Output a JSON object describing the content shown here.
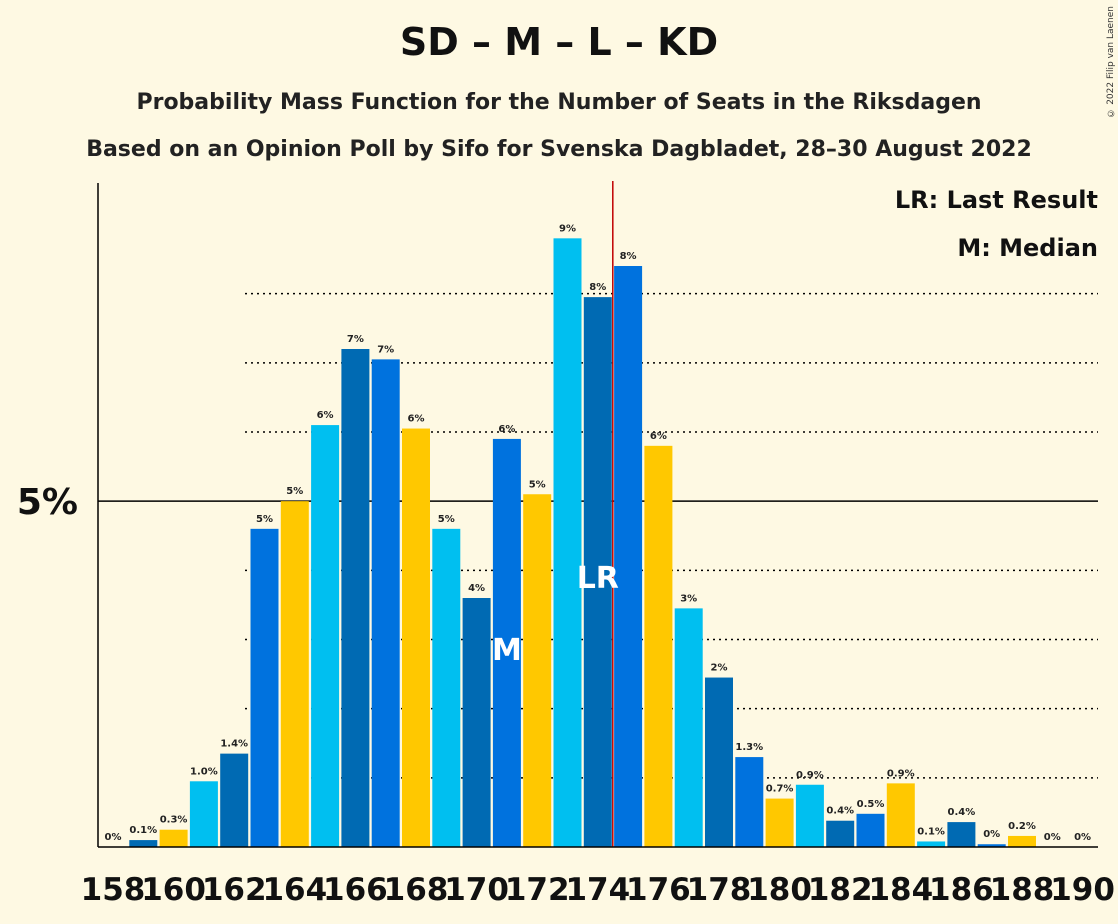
{
  "title": "SD – M – L – KD",
  "subtitle1": "Probability Mass Function for the Number of Seats in the Riksdagen",
  "subtitle2": "Based on an Opinion Poll by Sifo for Svenska Dagbladet, 28–30 August 2022",
  "copyright": "© 2022 Filip van Laenen",
  "legend": {
    "lr": "LR: Last Result",
    "m": "M: Median"
  },
  "ytick_label": "5%",
  "colors": {
    "background": "#FEF9E3",
    "lightblue": "#00BFF0",
    "darkblue": "#006AB3",
    "midblue": "#0072DE",
    "yellow": "#FFC800",
    "lr_line": "#C00000"
  },
  "chart_data": {
    "type": "bar",
    "x": [
      158,
      159,
      160,
      161,
      162,
      163,
      164,
      165,
      166,
      167,
      168,
      169,
      170,
      171,
      172,
      173,
      174,
      175,
      176,
      177,
      178,
      179,
      180,
      181,
      182,
      183,
      184,
      185,
      186,
      187,
      188,
      189,
      190
    ],
    "xtick_labels": [
      "158",
      "160",
      "162",
      "164",
      "166",
      "168",
      "170",
      "172",
      "174",
      "176",
      "178",
      "180",
      "182",
      "184",
      "186",
      "188",
      "190"
    ],
    "values": [
      0,
      0.1,
      0.25,
      0.95,
      1.35,
      4.6,
      5.0,
      6.1,
      7.2,
      7.05,
      6.05,
      4.6,
      3.6,
      5.9,
      5.1,
      8.8,
      7.95,
      8.4,
      5.8,
      3.45,
      2.45,
      1.3,
      0.7,
      0.9,
      0.38,
      0.48,
      0.92,
      0.08,
      0.36,
      0.04,
      0.16,
      0,
      0
    ],
    "value_labels": [
      "0%",
      "0.1%",
      "0.3%",
      "1.0%",
      "1.4%",
      "5%",
      "5%",
      "6%",
      "7%",
      "7%",
      "6%",
      "5%",
      "4%",
      "6%",
      "5%",
      "9%",
      "8%",
      "8%",
      "6%",
      "3%",
      "2%",
      "1.3%",
      "0.7%",
      "0.9%",
      "0.4%",
      "0.5%",
      "0.9%",
      "0.1%",
      "0.4%",
      "0%",
      "0.2%",
      "0%",
      "0%"
    ],
    "bar_colors": [
      "#00BFF0",
      "#006AB3",
      "#FFC800",
      "#00BFF0",
      "#006AB3",
      "#0072DE",
      "#FFC800",
      "#00BFF0",
      "#006AB3",
      "#0072DE",
      "#FFC800",
      "#00BFF0",
      "#006AB3",
      "#0072DE",
      "#FFC800",
      "#00BFF0",
      "#006AB3",
      "#0072DE",
      "#FFC800",
      "#00BFF0",
      "#006AB3",
      "#0072DE",
      "#FFC800",
      "#00BFF0",
      "#006AB3",
      "#0072DE",
      "#FFC800",
      "#00BFF0",
      "#006AB3",
      "#0072DE",
      "#FFC800",
      "#00BFF0",
      "#006AB3"
    ],
    "ylim": [
      0,
      9.6
    ],
    "yticks_major": [
      5
    ],
    "yticks_minor": [
      1,
      2,
      3,
      4,
      6,
      7,
      8
    ],
    "last_result": 174,
    "median": 171,
    "median_label": "M",
    "last_result_label": "LR"
  }
}
